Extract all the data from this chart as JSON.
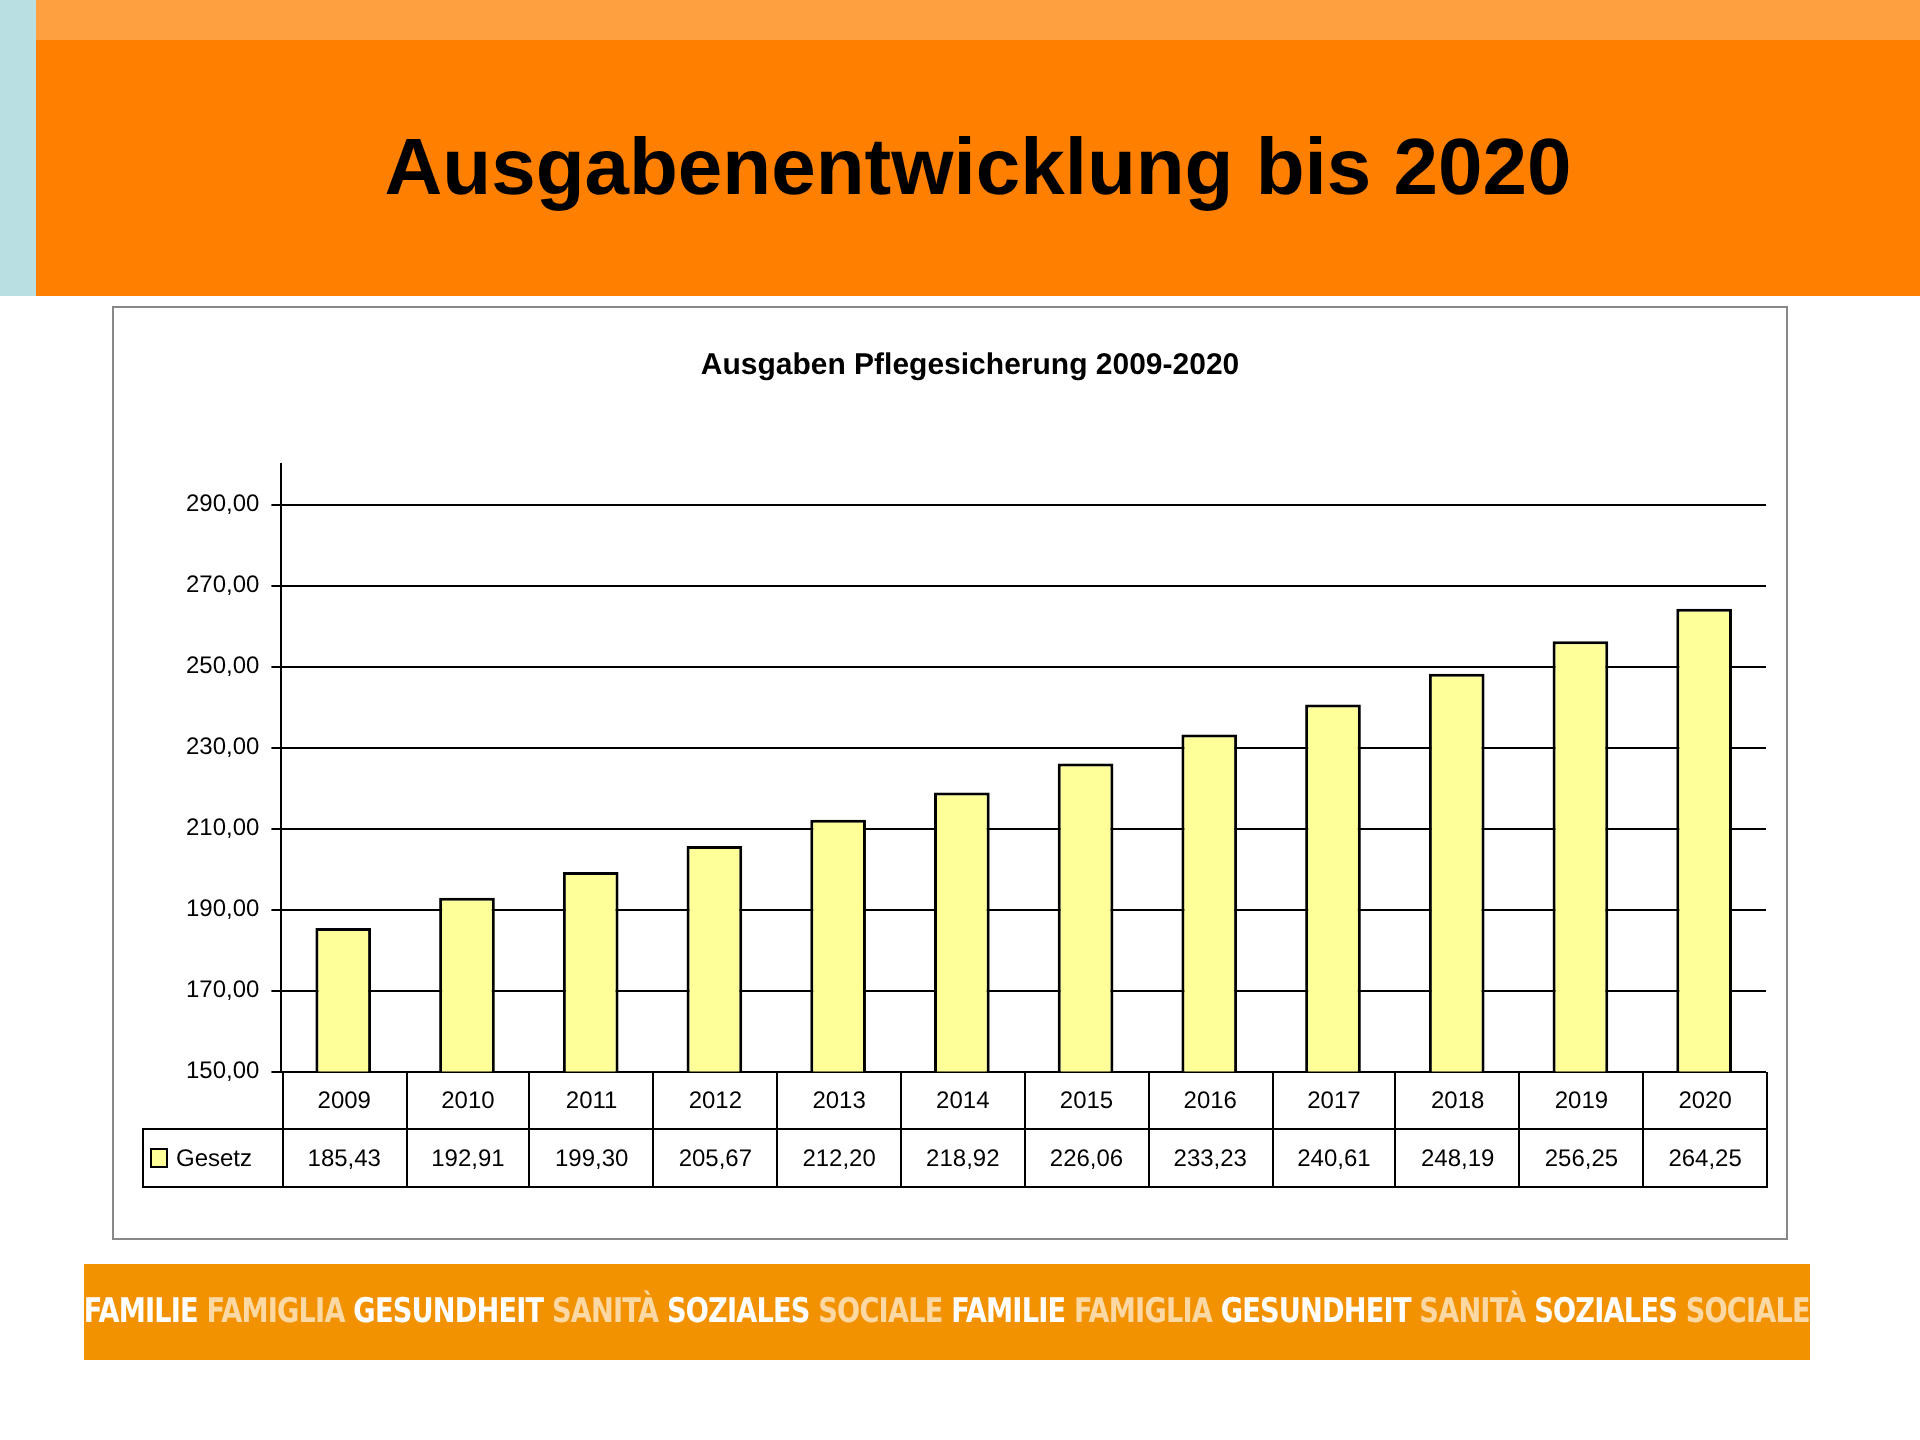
{
  "chart_data": {
    "type": "bar",
    "title": "Ausgabenentwicklung bis 2020",
    "subtitle": "Ausgaben Pflegesicherung 2009-2020",
    "categories": [
      "2009",
      "2010",
      "2011",
      "2012",
      "2013",
      "2014",
      "2015",
      "2016",
      "2017",
      "2018",
      "2019",
      "2020"
    ],
    "series": [
      {
        "name": "Gesetz",
        "color": "#ffff99",
        "values": [
          185.43,
          192.91,
          199.3,
          205.67,
          212.2,
          218.92,
          226.06,
          233.23,
          240.61,
          248.19,
          256.25,
          264.25
        ],
        "value_labels": [
          "185,43",
          "192,91",
          "199,30",
          "205,67",
          "212,20",
          "218,92",
          "226,06",
          "233,23",
          "240,61",
          "248,19",
          "256,25",
          "264,25"
        ]
      }
    ],
    "ylim": [
      150,
      300
    ],
    "yticks": [
      {
        "value": 150,
        "label": "150,00"
      },
      {
        "value": 170,
        "label": "170,00"
      },
      {
        "value": 190,
        "label": "190,00"
      },
      {
        "value": 210,
        "label": "210,00"
      },
      {
        "value": 230,
        "label": "230,00"
      },
      {
        "value": 250,
        "label": "250,00"
      },
      {
        "value": 270,
        "label": "270,00"
      },
      {
        "value": 290,
        "label": "290,00"
      }
    ],
    "grid": "y",
    "legend": "bottom",
    "data_labels": true,
    "annotations": [
      "FAMILIE FAMIGLIA GESUNDHEIT SANITÀ SOZIALES SOCIALE FAMILIE FAMIGLIA GESUNDHEIT SANITÀ SOZIALES SOCIALE"
    ]
  }
}
